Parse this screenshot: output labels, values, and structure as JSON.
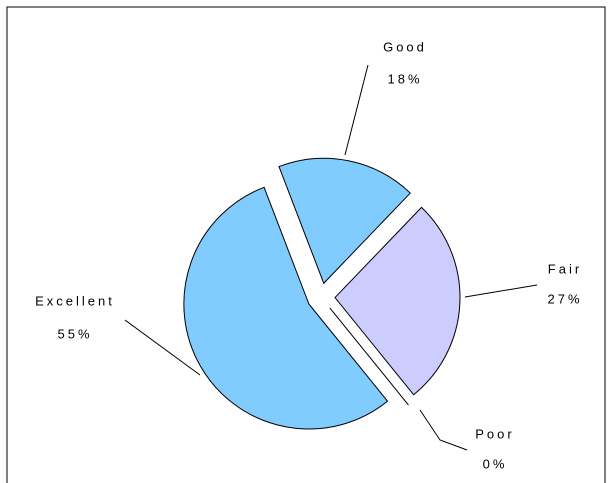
{
  "chart_data": {
    "type": "pie",
    "categories": [
      "Good",
      "Fair",
      "Poor",
      "Excellent"
    ],
    "values": [
      18,
      27,
      0,
      55
    ],
    "value_labels": [
      "18%",
      "27%",
      "0%",
      "55%"
    ],
    "colors": [
      "#80ccff",
      "#ccccff",
      "#80ccff",
      "#80ccff"
    ]
  }
}
